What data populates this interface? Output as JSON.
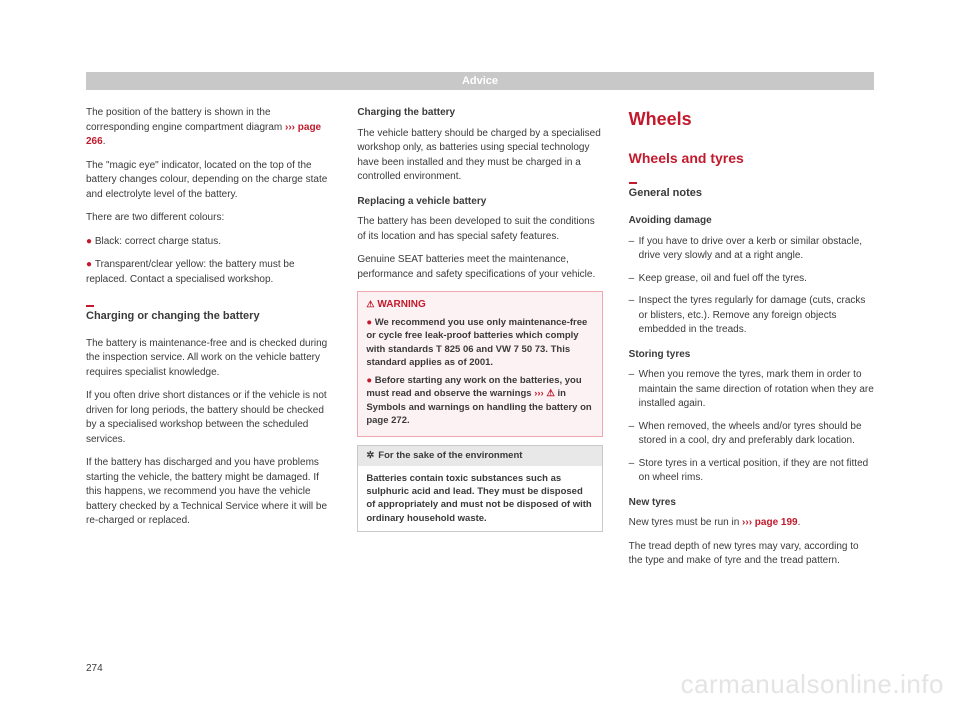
{
  "header": "Advice",
  "pageNumber": "274",
  "watermark": "carmanualsonline.info",
  "col1": {
    "p1a": "The position of the battery is shown in the corresponding engine compartment diagram ",
    "p1b": "››› page 266",
    "p1c": ".",
    "p2": "The \"magic eye\" indicator, located on the top of the battery changes colour, depending on the charge state and electrolyte level of the battery.",
    "p3": "There are two different colours:",
    "b1": "Black: correct charge status.",
    "b2": "Transparent/clear yellow: the battery must be replaced. Contact a specialised workshop.",
    "sectionHeading": "Charging or changing the battery",
    "p4": "The battery is maintenance-free and is checked during the inspection service. All work on the vehicle battery requires specialist knowledge.",
    "p5": "If you often drive short distances or if the vehicle is not driven for long periods, the battery should be checked by a specialised workshop between the scheduled services.",
    "p6": "If the battery has discharged and you have problems starting the vehicle, the battery might be damaged. If this happens, we recommend you have the vehicle battery checked by a Technical Service where it will be re-charged or replaced."
  },
  "col2": {
    "h1": "Charging the battery",
    "p1": "The vehicle battery should be charged by a specialised workshop only, as batteries using special technology have been installed and they must be charged in a controlled environment.",
    "h2": "Replacing a vehicle battery",
    "p2": "The battery has been developed to suit the conditions of its location and has special safety features.",
    "p3": "Genuine SEAT batteries meet the maintenance, performance and safety specifications of your vehicle.",
    "warnTitle": "WARNING",
    "w1": "We recommend you use only maintenance-free or cycle free leak-proof batteries which comply with standards T 825 06 and VW 7 50 73. This standard applies as of 2001.",
    "w2a": "Before starting any work on the batteries, you must read and observe the warnings ",
    "w2b": "››› ",
    "w2c": " in Symbols and warnings on handling the battery on page 272.",
    "envTitle": "For the sake of the environment",
    "envBody": "Batteries contain toxic substances such as sulphuric acid and lead. They must be disposed of appropriately and must not be disposed of with ordinary household waste."
  },
  "col3": {
    "mainTitle": "Wheels",
    "subTitle": "Wheels and tyres",
    "sectionHeading": "General notes",
    "h1": "Avoiding damage",
    "li1": "If you have to drive over a kerb or similar obstacle, drive very slowly and at a right angle.",
    "li2": "Keep grease, oil and fuel off the tyres.",
    "li3": "Inspect the tyres regularly for damage (cuts, cracks or blisters, etc.). Remove any foreign objects embedded in the treads.",
    "h2": "Storing tyres",
    "li4": "When you remove the tyres, mark them in order to maintain the same direction of rotation when they are installed again.",
    "li5": "When removed, the wheels and/or tyres should be stored in a cool, dry and preferably dark location.",
    "li6": "Store tyres in a vertical position, if they are not fitted on wheel rims.",
    "h3": "New tyres",
    "p1a": "New tyres must be run in ",
    "p1b": "››› page 199",
    "p1c": ".",
    "p2": "The tread depth of new tyres may vary, according to the type and make of tyre and the tread pattern."
  }
}
